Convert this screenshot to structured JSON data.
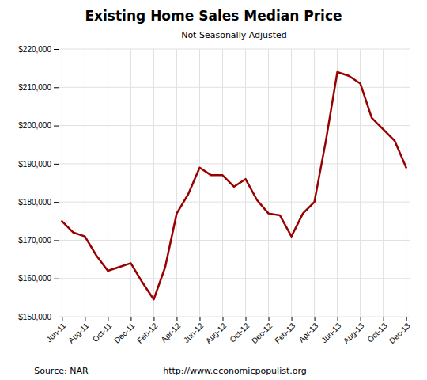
{
  "chart_data": {
    "type": "line",
    "title": "Existing Home Sales Median Price",
    "subtitle": "Not Seasonally Adjusted",
    "annotations": [
      "Source: NAR",
      "http://www.economicpopulist.org"
    ],
    "categories": [
      "Jun-11",
      null,
      "Aug-11",
      null,
      "Oct-11",
      null,
      "Dec-11",
      null,
      "Feb-12",
      null,
      "Apr-12",
      null,
      "Jun-12",
      null,
      "Aug-12",
      null,
      "Oct-12",
      null,
      "Dec-12",
      null,
      "Feb-13",
      null,
      "Apr-13",
      null,
      "Jun-13",
      null,
      "Aug-13",
      null,
      "Oct-13",
      null,
      "Dec-13"
    ],
    "values": [
      175000,
      172000,
      171000,
      166000,
      162000,
      163000,
      164000,
      159000,
      154500,
      163000,
      177000,
      182000,
      189000,
      187000,
      187000,
      184000,
      186000,
      180500,
      177000,
      176500,
      171000,
      177000,
      180000,
      196000,
      214000,
      213000,
      211000,
      202000,
      199000,
      196000,
      189000
    ],
    "color": "#990000",
    "ylim": [
      150000,
      220000
    ],
    "yticks": [
      {
        "value": 150000,
        "label": "$150,000"
      },
      {
        "value": 160000,
        "label": "$160,000"
      },
      {
        "value": 170000,
        "label": "$170,000"
      },
      {
        "value": 180000,
        "label": "$180,000"
      },
      {
        "value": 190000,
        "label": "$190,000"
      },
      {
        "value": 200000,
        "label": "$200,000"
      },
      {
        "value": 210000,
        "label": "$210,000"
      },
      {
        "value": 220000,
        "label": "$220,000"
      }
    ],
    "grid": true
  }
}
